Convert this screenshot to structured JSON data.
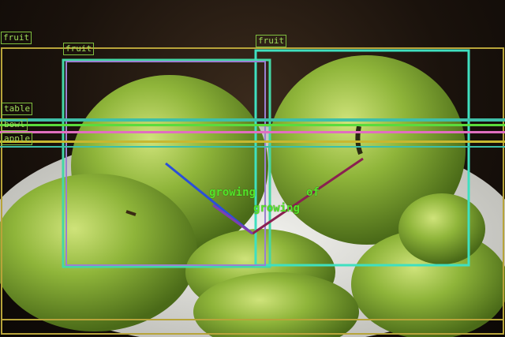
{
  "boxes": [
    {
      "label": "fruit",
      "color": "#44d7a6"
    },
    {
      "label": "fruit",
      "color": "#3fe0c0"
    },
    {
      "label": "fruit",
      "color": "#9a7fd0"
    },
    {
      "label": "table",
      "color": "#b8a43a"
    },
    {
      "label": "bowl",
      "color": "#5adc3c"
    },
    {
      "label": "apple",
      "color": "#e06ec0"
    },
    {
      "label": "apple",
      "color": "#c8b830"
    },
    {
      "label": "apple",
      "color": "#3cbfa8"
    }
  ],
  "relations": [
    {
      "label": "growing",
      "color": "#2a4fd8"
    },
    {
      "label": "of",
      "color": "#8a2050"
    },
    {
      "label": "growing",
      "color": "#7d3fb0"
    }
  ]
}
